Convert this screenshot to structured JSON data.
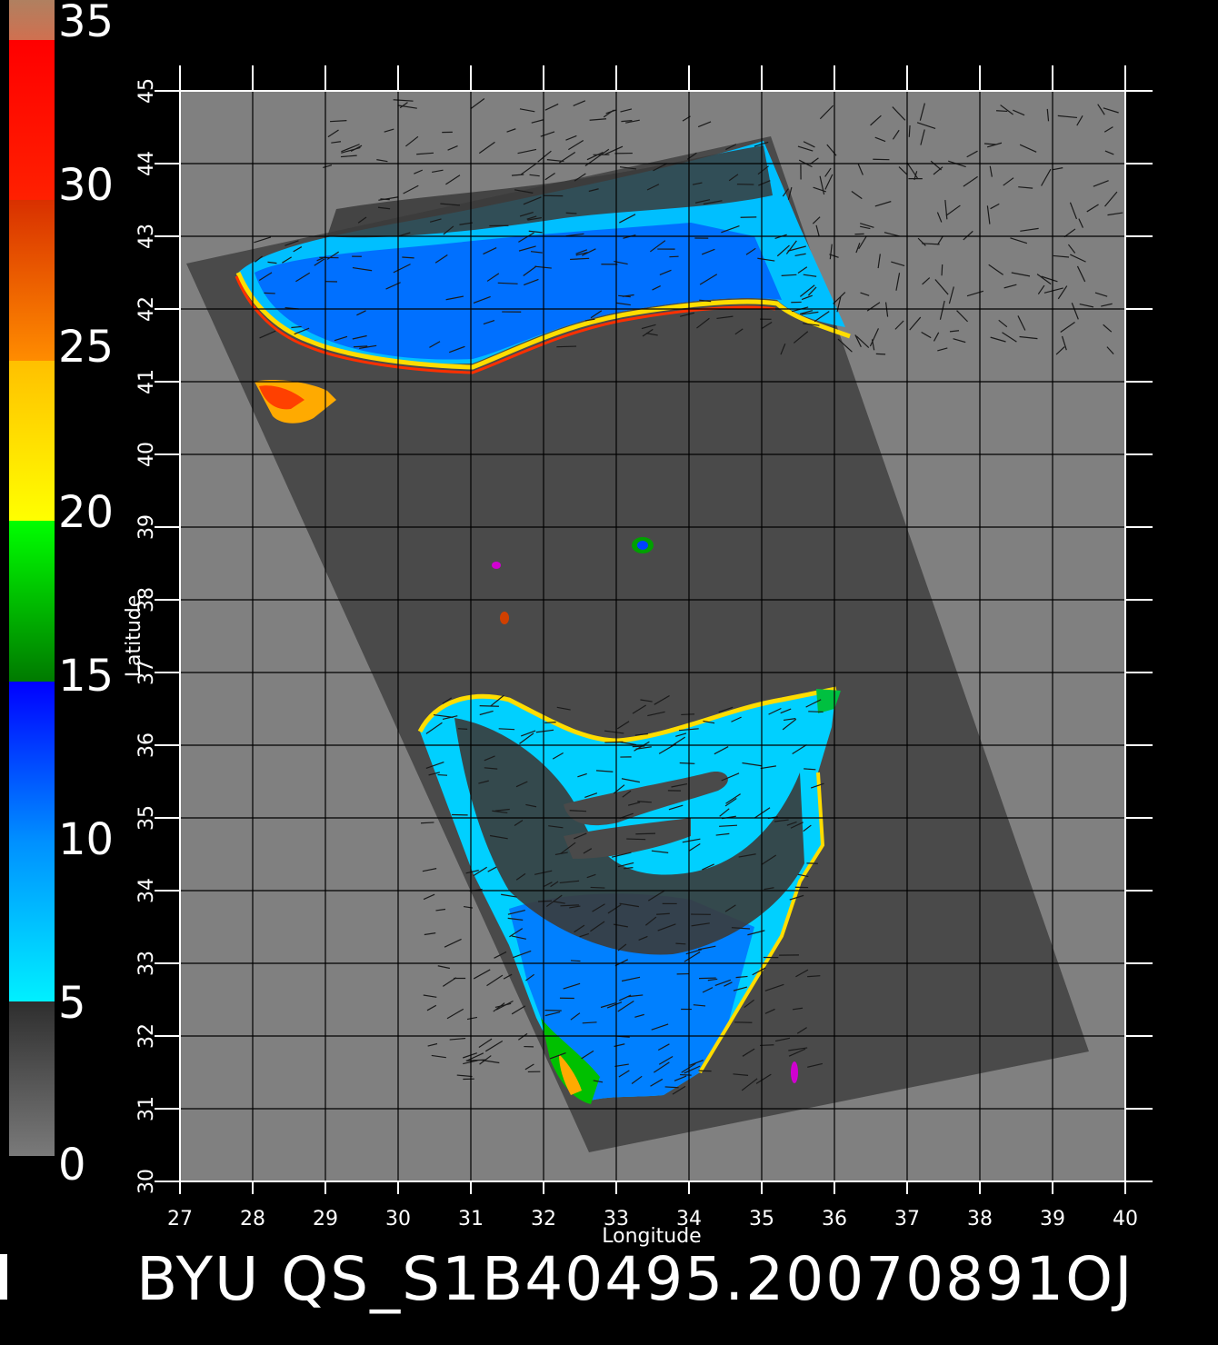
{
  "colorbar": {
    "labels": [
      "35",
      "30",
      "25",
      "20",
      "15",
      "10",
      "5",
      "0"
    ],
    "values": [
      35,
      30,
      25,
      20,
      15,
      10,
      5,
      0
    ],
    "colors": {
      "low_gray": "#7a7a7a",
      "dark_gray": "#2e2e2e",
      "cyan": "#00f0ff",
      "light_blue": "#0090ff",
      "blue": "#0000ff",
      "dark_green": "#007a00",
      "green": "#00ff00",
      "yellow": "#ffff00",
      "gold": "#ffc000",
      "orange": "#ff8000",
      "red_orange": "#e03000",
      "red": "#ff0000",
      "tan": "#c08050"
    }
  },
  "map": {
    "xlabel": "Longitude",
    "ylabel": "Latitude",
    "x_ticks": [
      "27",
      "28",
      "29",
      "30",
      "31",
      "32",
      "33",
      "34",
      "35",
      "36",
      "37",
      "38",
      "39",
      "40"
    ],
    "y_ticks": [
      "30",
      "31",
      "32",
      "33",
      "34",
      "35",
      "36",
      "37",
      "38",
      "39",
      "40",
      "41",
      "42",
      "43",
      "44",
      "45"
    ],
    "lon_range": [
      27,
      40
    ],
    "lat_range": [
      30,
      45
    ],
    "grid": true,
    "background_color": "#808080",
    "swath_color": "#4a4a4a",
    "wind_barb_color": "#1a1a1a"
  },
  "footer": {
    "text": "BYU  QS_S1B40495.20070891OJ"
  }
}
